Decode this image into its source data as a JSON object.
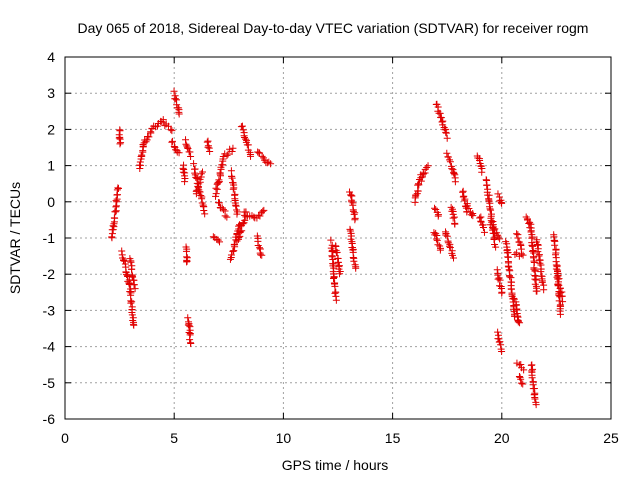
{
  "chart_data": {
    "type": "scatter",
    "title": "Day 065 of 2018, Sidereal Day-to-day VTEC variation (SDTVAR) for receiver rogm",
    "xlabel": "GPS time / hours",
    "ylabel": "SDTVAR / TECUs",
    "xlim": [
      0,
      25
    ],
    "ylim": [
      -6,
      4
    ],
    "xticks": [
      0,
      5,
      10,
      15,
      20,
      25
    ],
    "yticks": [
      -6,
      -5,
      -4,
      -3,
      -2,
      -1,
      0,
      1,
      2,
      3,
      4
    ],
    "grid": true,
    "marker": "plus",
    "color": "#e00000",
    "segments": [
      {
        "x": [
          2.15,
          2.45
        ],
        "y": [
          -1.0,
          0.4
        ]
      },
      {
        "x": [
          2.5,
          2.52
        ],
        "y": [
          2.0,
          1.6
        ]
      },
      {
        "x": [
          2.6,
          2.95
        ],
        "y": [
          -1.4,
          -2.3
        ]
      },
      {
        "x": [
          2.95,
          3.15
        ],
        "y": [
          -2.2,
          -3.4
        ]
      },
      {
        "x": [
          3.0,
          3.2
        ],
        "y": [
          -1.6,
          -2.4
        ]
      },
      {
        "x": [
          3.4,
          3.6
        ],
        "y": [
          0.9,
          1.6
        ]
      },
      {
        "x": [
          3.6,
          4.0
        ],
        "y": [
          1.6,
          2.0
        ]
      },
      {
        "x": [
          4.0,
          4.5
        ],
        "y": [
          2.0,
          2.3
        ]
      },
      {
        "x": [
          4.5,
          4.9
        ],
        "y": [
          2.2,
          2.0
        ]
      },
      {
        "x": [
          4.9,
          5.2
        ],
        "y": [
          1.7,
          1.3
        ]
      },
      {
        "x": [
          5.0,
          5.25
        ],
        "y": [
          3.0,
          2.4
        ]
      },
      {
        "x": [
          5.4,
          5.5
        ],
        "y": [
          1.0,
          0.6
        ]
      },
      {
        "x": [
          5.55,
          5.6
        ],
        "y": [
          -1.3,
          -1.7
        ]
      },
      {
        "x": [
          5.5,
          5.75
        ],
        "y": [
          1.7,
          1.3
        ]
      },
      {
        "x": [
          5.65,
          5.75
        ],
        "y": [
          -3.2,
          -3.9
        ]
      },
      {
        "x": [
          5.9,
          6.4
        ],
        "y": [
          1.0,
          -0.3
        ]
      },
      {
        "x": [
          6.0,
          6.3
        ],
        "y": [
          0.2,
          0.8
        ]
      },
      {
        "x": [
          6.5,
          6.6
        ],
        "y": [
          1.7,
          1.4
        ]
      },
      {
        "x": [
          6.8,
          7.1
        ],
        "y": [
          -1.0,
          -1.1
        ]
      },
      {
        "x": [
          6.9,
          7.3
        ],
        "y": [
          0.2,
          1.3
        ]
      },
      {
        "x": [
          7.0,
          7.4
        ],
        "y": [
          0.0,
          -0.4
        ]
      },
      {
        "x": [
          7.4,
          7.7
        ],
        "y": [
          1.3,
          1.5
        ]
      },
      {
        "x": [
          7.6,
          7.9
        ],
        "y": [
          0.8,
          -0.3
        ]
      },
      {
        "x": [
          7.6,
          8.0
        ],
        "y": [
          -1.6,
          -0.6
        ]
      },
      {
        "x": [
          7.9,
          8.3
        ],
        "y": [
          -1.1,
          -0.3
        ]
      },
      {
        "x": [
          8.1,
          8.5
        ],
        "y": [
          2.1,
          1.3
        ]
      },
      {
        "x": [
          8.2,
          8.8
        ],
        "y": [
          -0.3,
          -0.5
        ]
      },
      {
        "x": [
          8.8,
          9.0
        ],
        "y": [
          -1.0,
          -1.5
        ]
      },
      {
        "x": [
          8.85,
          9.1
        ],
        "y": [
          -0.4,
          -0.2
        ]
      },
      {
        "x": [
          8.8,
          9.4
        ],
        "y": [
          1.4,
          1.0
        ]
      },
      {
        "x": [
          12.2,
          12.4
        ],
        "y": [
          -1.1,
          -2.7
        ]
      },
      {
        "x": [
          12.4,
          12.6
        ],
        "y": [
          -1.2,
          -2.0
        ]
      },
      {
        "x": [
          13.05,
          13.3
        ],
        "y": [
          0.3,
          -0.5
        ]
      },
      {
        "x": [
          13.05,
          13.3
        ],
        "y": [
          -0.8,
          -1.8
        ]
      },
      {
        "x": [
          16.0,
          16.3
        ],
        "y": [
          0.0,
          0.7
        ]
      },
      {
        "x": [
          16.3,
          16.6
        ],
        "y": [
          0.6,
          1.0
        ]
      },
      {
        "x": [
          16.9,
          17.2
        ],
        "y": [
          -0.8,
          -1.3
        ]
      },
      {
        "x": [
          16.95,
          17.1
        ],
        "y": [
          -0.2,
          -0.4
        ]
      },
      {
        "x": [
          17.0,
          17.5
        ],
        "y": [
          2.7,
          1.8
        ]
      },
      {
        "x": [
          17.4,
          17.8
        ],
        "y": [
          -0.8,
          -1.5
        ]
      },
      {
        "x": [
          17.5,
          17.9
        ],
        "y": [
          1.3,
          0.6
        ]
      },
      {
        "x": [
          17.7,
          17.85
        ],
        "y": [
          -0.1,
          -0.6
        ]
      },
      {
        "x": [
          18.2,
          18.4
        ],
        "y": [
          0.3,
          -0.3
        ]
      },
      {
        "x": [
          18.4,
          18.7
        ],
        "y": [
          -0.1,
          -0.4
        ]
      },
      {
        "x": [
          18.9,
          19.1
        ],
        "y": [
          1.3,
          0.8
        ]
      },
      {
        "x": [
          19.0,
          19.2
        ],
        "y": [
          -0.4,
          -0.8
        ]
      },
      {
        "x": [
          19.3,
          19.7
        ],
        "y": [
          0.6,
          -1.2
        ]
      },
      {
        "x": [
          19.5,
          19.9
        ],
        "y": [
          -0.6,
          -1.0
        ]
      },
      {
        "x": [
          19.85,
          20.0
        ],
        "y": [
          0.2,
          -0.1
        ]
      },
      {
        "x": [
          19.8,
          20.0
        ],
        "y": [
          -1.9,
          -2.5
        ]
      },
      {
        "x": [
          19.8,
          20.0
        ],
        "y": [
          -3.6,
          -4.1
        ]
      },
      {
        "x": [
          20.2,
          20.6
        ],
        "y": [
          -1.1,
          -3.2
        ]
      },
      {
        "x": [
          20.6,
          20.8
        ],
        "y": [
          -2.7,
          -3.4
        ]
      },
      {
        "x": [
          20.6,
          21.0
        ],
        "y": [
          -1.4,
          -1.5
        ]
      },
      {
        "x": [
          20.7,
          20.9
        ],
        "y": [
          -0.9,
          -1.3
        ]
      },
      {
        "x": [
          20.7,
          21.0
        ],
        "y": [
          -4.4,
          -4.6
        ]
      },
      {
        "x": [
          20.8,
          20.95
        ],
        "y": [
          -4.8,
          -5.0
        ]
      },
      {
        "x": [
          21.1,
          21.3
        ],
        "y": [
          -0.4,
          -0.6
        ]
      },
      {
        "x": [
          21.3,
          21.6
        ],
        "y": [
          -0.6,
          -2.5
        ]
      },
      {
        "x": [
          21.35,
          21.55
        ],
        "y": [
          -4.5,
          -5.6
        ]
      },
      {
        "x": [
          21.6,
          21.9
        ],
        "y": [
          -1.0,
          -2.4
        ]
      },
      {
        "x": [
          22.4,
          22.7
        ],
        "y": [
          -0.9,
          -3.1
        ]
      },
      {
        "x": [
          22.5,
          22.8
        ],
        "y": [
          -1.9,
          -2.7
        ]
      }
    ]
  }
}
